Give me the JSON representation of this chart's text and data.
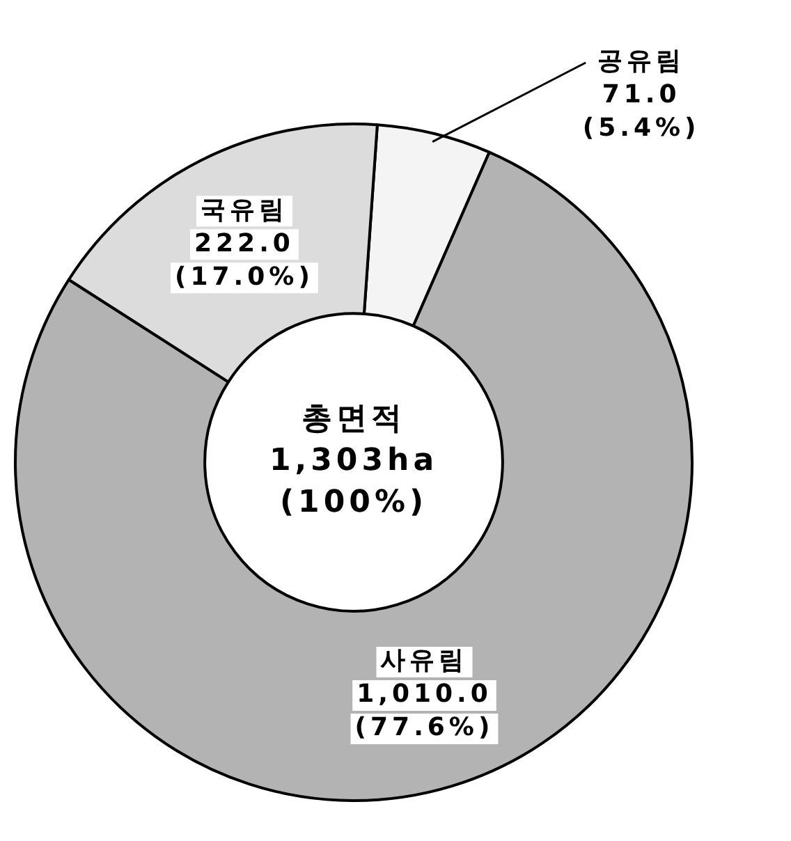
{
  "chart_data": {
    "type": "donut",
    "categories": [
      "공유림",
      "사유림",
      "국유림"
    ],
    "values": [
      71.0,
      1010.0,
      222.0
    ],
    "value_labels": [
      "71.0\n(5.4%)",
      "1,010.0\n(77.6%)",
      "222.0\n(17.0%)"
    ],
    "colors": [
      "#f4f4f4",
      "#b3b3b3",
      "#dcdcdc"
    ],
    "annotations": [
      "총면적",
      "1,303ha",
      "(100%)"
    ],
    "legend": false
  }
}
